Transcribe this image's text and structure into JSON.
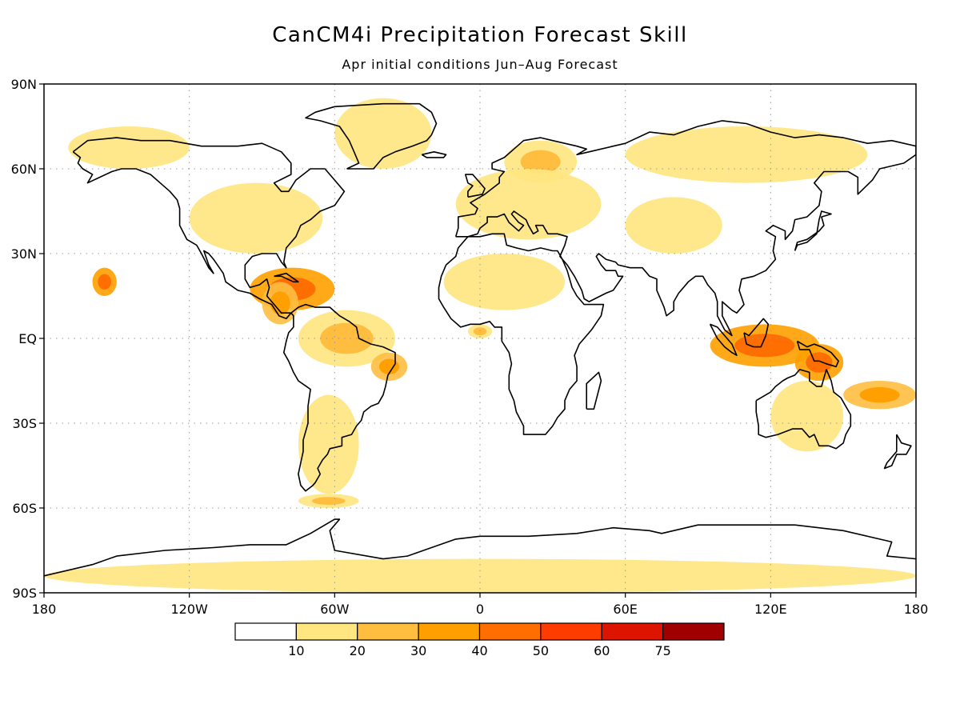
{
  "title": "CanCM4i Precipitation Forecast Skill",
  "subtitle": "Apr initial conditions  Jun–Aug Forecast",
  "axes": {
    "lon_ticks": [
      "180",
      "120W",
      "60W",
      "0",
      "60E",
      "120E",
      "180"
    ],
    "lat_ticks": [
      "90N",
      "60N",
      "30N",
      "EQ",
      "30S",
      "60S",
      "90S"
    ]
  },
  "colorbar": {
    "labels": [
      "10",
      "20",
      "30",
      "40",
      "50",
      "60",
      "75"
    ],
    "colors": [
      "#ffffff",
      "#ffe680",
      "#ffbe40",
      "#ffa000",
      "#ff6e00",
      "#ff3c00",
      "#dc1400",
      "#a00000"
    ]
  },
  "colors": {
    "coastline": "#000000",
    "grid": "#999999",
    "frame": "#000000"
  },
  "skill_regions": [
    {
      "name": "greenland",
      "lon": [
        -60,
        -20
      ],
      "lat": [
        60,
        85
      ],
      "level": 1
    },
    {
      "name": "alaska-arctic",
      "lon": [
        -170,
        -120
      ],
      "lat": [
        60,
        75
      ],
      "level": 1
    },
    {
      "name": "north-america",
      "lon": [
        -120,
        -65
      ],
      "lat": [
        30,
        55
      ],
      "level": 1
    },
    {
      "name": "caribbean",
      "lon": [
        -95,
        -60
      ],
      "lat": [
        10,
        25
      ],
      "level": 4
    },
    {
      "name": "central-america",
      "lon": [
        -90,
        -75
      ],
      "lat": [
        5,
        20
      ],
      "level": 3
    },
    {
      "name": "hawaii",
      "lon": [
        -160,
        -150
      ],
      "lat": [
        15,
        25
      ],
      "level": 4
    },
    {
      "name": "northern-south-america",
      "lon": [
        -75,
        -35
      ],
      "lat": [
        -10,
        10
      ],
      "level": 2
    },
    {
      "name": "brazil-east",
      "lon": [
        -45,
        -30
      ],
      "lat": [
        -15,
        -5
      ],
      "level": 3
    },
    {
      "name": "southern-south-america",
      "lon": [
        -75,
        -50
      ],
      "lat": [
        -55,
        -20
      ],
      "level": 1
    },
    {
      "name": "scandinavia",
      "lon": [
        10,
        40
      ],
      "lat": [
        55,
        70
      ],
      "level": 2
    },
    {
      "name": "europe",
      "lon": [
        -10,
        50
      ],
      "lat": [
        35,
        60
      ],
      "level": 1
    },
    {
      "name": "sahara",
      "lon": [
        -15,
        35
      ],
      "lat": [
        10,
        30
      ],
      "level": 1
    },
    {
      "name": "gulf-of-guinea",
      "lon": [
        -5,
        5
      ],
      "lat": [
        0,
        5
      ],
      "level": 2
    },
    {
      "name": "central-asia",
      "lon": [
        60,
        100
      ],
      "lat": [
        30,
        50
      ],
      "level": 1
    },
    {
      "name": "siberia",
      "lon": [
        60,
        160
      ],
      "lat": [
        55,
        75
      ],
      "level": 1
    },
    {
      "name": "maritime-continent",
      "lon": [
        95,
        140
      ],
      "lat": [
        -10,
        5
      ],
      "level": 4
    },
    {
      "name": "new-guinea",
      "lon": [
        130,
        150
      ],
      "lat": [
        -15,
        -2
      ],
      "level": 4
    },
    {
      "name": "australia",
      "lon": [
        120,
        150
      ],
      "lat": [
        -40,
        -15
      ],
      "level": 1
    },
    {
      "name": "south-pacific-east",
      "lon": [
        150,
        180
      ],
      "lat": [
        -25,
        -15
      ],
      "level": 3
    },
    {
      "name": "southern-ocean",
      "lon": [
        -75,
        -50
      ],
      "lat": [
        -60,
        -55
      ],
      "level": 2
    },
    {
      "name": "antarctica",
      "lon": [
        -180,
        180
      ],
      "lat": [
        -90,
        -78
      ],
      "level": 1
    }
  ]
}
